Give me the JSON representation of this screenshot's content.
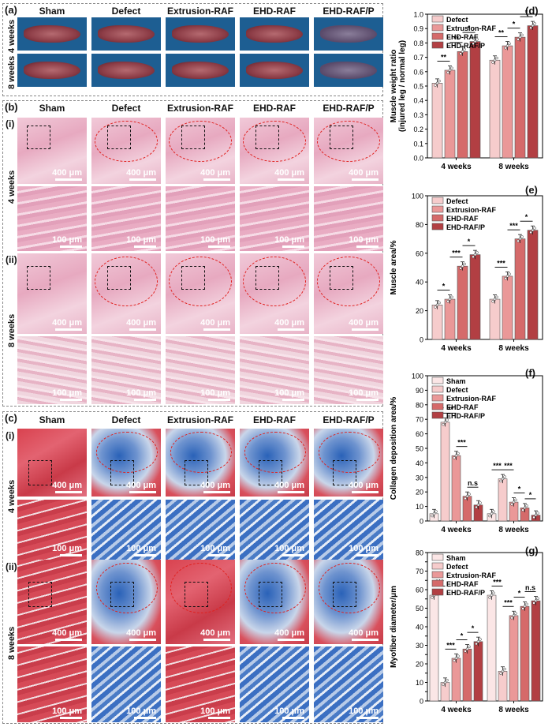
{
  "panel_labels": {
    "a": "(a)",
    "b": "(b)",
    "c": "(c)",
    "d": "(d)",
    "e": "(e)",
    "f": "(f)",
    "g": "(g)",
    "bi": "(i)",
    "bii": "(ii)",
    "ci": "(i)",
    "cii": "(ii)"
  },
  "groups": [
    "Sham",
    "Defect",
    "Extrusion-RAF",
    "EHD-RAF",
    "EHD-RAF/P"
  ],
  "timepoints": {
    "w4": "4 weeks",
    "w8": "8 weeks"
  },
  "scale_bars": {
    "large": "400 μm",
    "small": "100 μm"
  },
  "colors": {
    "sham": "#fbe6e6",
    "defect": "#f6cccc",
    "extrusion": "#ea9898",
    "ehd": "#d56a6a",
    "ehdp": "#b23f43"
  },
  "chart_data": [
    {
      "id": "d",
      "type": "bar",
      "ylabel": "Muscle weight ratio\n(injured leg / normal leg)",
      "ylim": [
        0,
        1.0
      ],
      "yticks": [
        0.0,
        0.1,
        0.2,
        0.3,
        0.4,
        0.5,
        0.6,
        0.7,
        0.8,
        0.9,
        1.0
      ],
      "categories": [
        "4 weeks",
        "8 weeks"
      ],
      "series": [
        {
          "name": "Defect",
          "values": [
            0.52,
            0.68
          ]
        },
        {
          "name": "Extrusion-RAF",
          "values": [
            0.61,
            0.78
          ]
        },
        {
          "name": "EHD-RAF",
          "values": [
            0.74,
            0.84
          ]
        },
        {
          "name": "EHD-RAF/P",
          "values": [
            0.81,
            0.92
          ]
        }
      ],
      "significance": [
        [
          "**",
          "**",
          "*"
        ],
        [
          "**",
          "*",
          "*"
        ]
      ]
    },
    {
      "id": "e",
      "type": "bar",
      "ylabel": "Muscle area/%",
      "ylim": [
        0,
        100
      ],
      "yticks": [
        0,
        20,
        40,
        60,
        80,
        100
      ],
      "categories": [
        "4 weeks",
        "8 weeks"
      ],
      "series": [
        {
          "name": "Defect",
          "values": [
            24,
            28
          ]
        },
        {
          "name": "Extrusion-RAF",
          "values": [
            28,
            44
          ]
        },
        {
          "name": "EHD-RAF",
          "values": [
            51,
            70
          ]
        },
        {
          "name": "EHD-RAF/P",
          "values": [
            59,
            76
          ]
        }
      ],
      "significance": [
        [
          "*",
          "***",
          "*"
        ],
        [
          "***",
          "***",
          "*"
        ]
      ]
    },
    {
      "id": "f",
      "type": "bar",
      "ylabel": "Collagen deposition area/%",
      "ylim": [
        0,
        100
      ],
      "yticks": [
        0,
        10,
        20,
        30,
        40,
        50,
        60,
        70,
        80,
        90,
        100
      ],
      "categories": [
        "4 weeks",
        "8 weeks"
      ],
      "series": [
        {
          "name": "Sham",
          "values": [
            5,
            5
          ]
        },
        {
          "name": "Defect",
          "values": [
            68,
            29
          ]
        },
        {
          "name": "Extrusion-RAF",
          "values": [
            45,
            13
          ]
        },
        {
          "name": "EHD-RAF",
          "values": [
            17,
            9
          ]
        },
        {
          "name": "EHD-RAF/P",
          "values": [
            11,
            4
          ]
        }
      ],
      "significance": [
        [
          "***",
          "**",
          "***",
          "n.s"
        ],
        [
          "***",
          "***",
          "*",
          "*"
        ]
      ]
    },
    {
      "id": "g",
      "type": "bar",
      "ylabel": "Myofiber diameter/μm",
      "ylim": [
        0,
        80
      ],
      "yticks": [
        0,
        5,
        10,
        15,
        20,
        25,
        30,
        35,
        40,
        45,
        50,
        55,
        60,
        65,
        70,
        75,
        80
      ],
      "categories": [
        "4 weeks",
        "8 weeks"
      ],
      "series": [
        {
          "name": "Sham",
          "values": [
            57,
            57
          ]
        },
        {
          "name": "Defect",
          "values": [
            10,
            16
          ]
        },
        {
          "name": "Extrusion-RAF",
          "values": [
            23,
            46
          ]
        },
        {
          "name": "EHD-RAF",
          "values": [
            28,
            51
          ]
        },
        {
          "name": "EHD-RAF/P",
          "values": [
            32,
            54
          ]
        }
      ],
      "significance": [
        [
          "***",
          "***",
          "*",
          "*"
        ],
        [
          "***",
          "***",
          "*",
          "n.s"
        ]
      ]
    }
  ]
}
